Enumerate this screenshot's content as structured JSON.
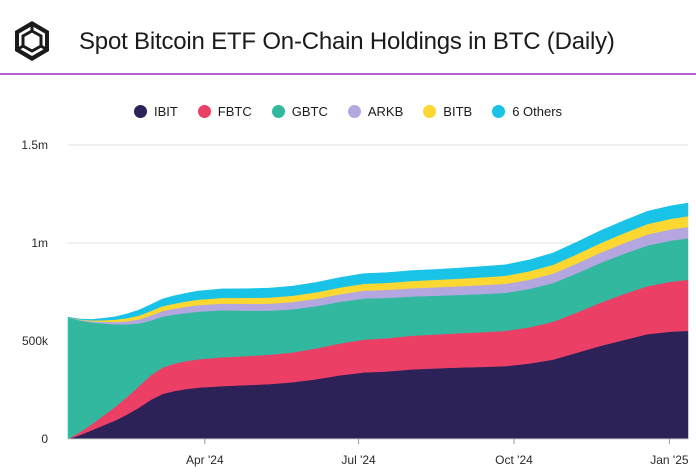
{
  "header": {
    "title": "Spot Bitcoin ETF On-Chain Holdings in BTC (Daily)",
    "accent_color": "#b45fd6",
    "logo_icon": "cube-logo-icon"
  },
  "chart_data": {
    "type": "area",
    "stacked": true,
    "title": "Spot Bitcoin ETF On-Chain Holdings in BTC (Daily)",
    "xlabel": "",
    "ylabel": "",
    "ylim": [
      0,
      1500000
    ],
    "xlim": [
      0,
      367
    ],
    "yticks": [
      {
        "value": 0,
        "label": "0"
      },
      {
        "value": 500000,
        "label": "500k"
      },
      {
        "value": 1000000,
        "label": "1m"
      },
      {
        "value": 1500000,
        "label": "1.5m"
      }
    ],
    "xticks": [
      {
        "day": 81,
        "label": "Apr '24"
      },
      {
        "day": 172,
        "label": "Jul '24"
      },
      {
        "day": 264,
        "label": "Oct '24"
      },
      {
        "day": 356,
        "label": "Jan '25"
      }
    ],
    "grid": "horizontal",
    "legend_position": "top-center",
    "x_days": [
      0,
      7,
      14,
      21,
      28,
      35,
      42,
      49,
      56,
      63,
      70,
      77,
      91,
      105,
      119,
      133,
      147,
      161,
      175,
      189,
      203,
      217,
      231,
      245,
      259,
      273,
      287,
      301,
      315,
      329,
      343,
      357,
      367
    ],
    "series": [
      {
        "name": "IBIT",
        "color": "#2c2258",
        "values": [
          0,
          20000,
          45000,
          70000,
          95000,
          125000,
          160000,
          200000,
          230000,
          245000,
          255000,
          262000,
          270000,
          275000,
          280000,
          290000,
          305000,
          325000,
          340000,
          345000,
          355000,
          360000,
          365000,
          368000,
          372000,
          385000,
          405000,
          440000,
          475000,
          505000,
          535000,
          548000,
          552000
        ]
      },
      {
        "name": "FBTC",
        "color": "#ec3f66",
        "values": [
          0,
          15000,
          30000,
          50000,
          70000,
          90000,
          110000,
          125000,
          135000,
          140000,
          143000,
          145000,
          147000,
          148000,
          150000,
          152000,
          158000,
          163000,
          167000,
          170000,
          172000,
          173000,
          175000,
          177000,
          180000,
          185000,
          193000,
          205000,
          220000,
          235000,
          245000,
          255000,
          260000
        ]
      },
      {
        "name": "GBTC",
        "color": "#33b8a0",
        "values": [
          620000,
          570000,
          520000,
          470000,
          420000,
          370000,
          320000,
          280000,
          260000,
          250000,
          245000,
          243000,
          240000,
          232000,
          225000,
          220000,
          215000,
          212000,
          210000,
          205000,
          200000,
          198000,
          195000,
          195000,
          194000,
          196000,
          198000,
          200000,
          203000,
          205000,
          208000,
          210000,
          212000
        ]
      },
      {
        "name": "ARKB",
        "color": "#b4a7df",
        "values": [
          1000,
          3000,
          5000,
          8000,
          12000,
          16000,
          20000,
          25000,
          28000,
          30000,
          32000,
          33000,
          34000,
          35000,
          36000,
          37000,
          38000,
          39000,
          40000,
          41000,
          42000,
          43000,
          44000,
          45000,
          46000,
          47000,
          48000,
          50000,
          52000,
          54000,
          56000,
          57000,
          58000
        ]
      },
      {
        "name": "BITB",
        "color": "#fbd732",
        "values": [
          500,
          2000,
          5000,
          8000,
          12000,
          16000,
          20000,
          23000,
          25000,
          26000,
          27000,
          28000,
          29000,
          30000,
          31000,
          32000,
          33000,
          34000,
          35000,
          36000,
          37000,
          38000,
          39000,
          40000,
          41000,
          43000,
          45000,
          47000,
          49000,
          51000,
          53000,
          54000,
          55000
        ]
      },
      {
        "name": "6 Others",
        "color": "#19c3e8",
        "values": [
          500,
          2000,
          5000,
          10000,
          15000,
          22000,
          28000,
          33000,
          37000,
          40000,
          42000,
          44000,
          46000,
          47000,
          48000,
          49000,
          50000,
          51000,
          52000,
          52000,
          53000,
          53000,
          54000,
          55000,
          56000,
          58000,
          60000,
          62000,
          63000,
          64000,
          65000,
          66000,
          67000
        ]
      }
    ]
  }
}
